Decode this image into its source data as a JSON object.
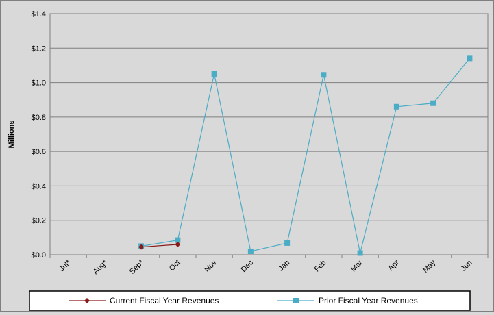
{
  "chart_data": {
    "type": "line",
    "ylabel": "Millions",
    "categories": [
      "Jul*",
      "Aug*",
      "Sep*",
      "Oct",
      "Nov",
      "Dec",
      "Jan",
      "Feb",
      "Mar",
      "Apr",
      "May",
      "Jun"
    ],
    "ylim": [
      0,
      1.4
    ],
    "yticks": [
      0.0,
      0.2,
      0.4,
      0.6,
      0.8,
      1.0,
      1.2,
      1.4
    ],
    "ytick_labels": [
      "$0.0",
      "$0.2",
      "$0.4",
      "$0.6",
      "$0.8",
      "$1.0",
      "$1.2",
      "$1.4"
    ],
    "grid": true,
    "legend_position": "bottom",
    "series": [
      {
        "name": "Current Fiscal Year Revenues",
        "color": "#8b1a1a",
        "marker": "diamond",
        "values": [
          null,
          null,
          0.045,
          0.06,
          null,
          null,
          null,
          null,
          null,
          null,
          null,
          null
        ]
      },
      {
        "name": "Prior Fiscal Year Revenues",
        "color": "#4bacc6",
        "marker": "square",
        "values": [
          null,
          null,
          0.05,
          0.085,
          1.05,
          0.02,
          0.068,
          1.045,
          0.01,
          0.86,
          0.88,
          1.14
        ]
      }
    ]
  }
}
